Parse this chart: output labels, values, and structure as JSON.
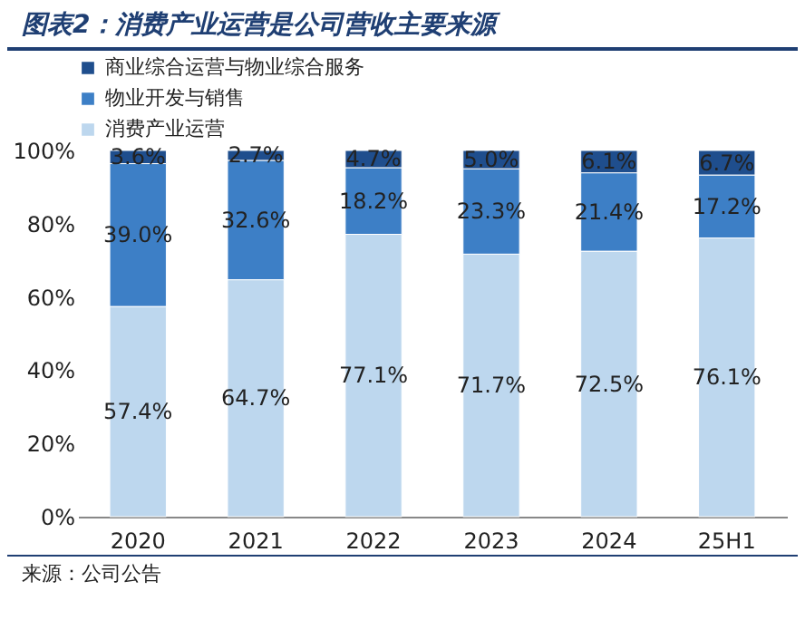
{
  "chart_data": {
    "type": "bar",
    "stacked": true,
    "title": "图表2：消费产业运营是公司营收主要来源",
    "categories": [
      "2020",
      "2021",
      "2022",
      "2023",
      "2024",
      "25H1"
    ],
    "series": [
      {
        "name": "消费产业运营",
        "color": "#bdd7ee",
        "values": [
          57.4,
          64.7,
          77.1,
          71.7,
          72.5,
          76.1
        ],
        "value_labels": [
          "57.4%",
          "64.7%",
          "77.1%",
          "71.7%",
          "72.5%",
          "76.1%"
        ]
      },
      {
        "name": "物业开发与销售",
        "color": "#3d7fc6",
        "values": [
          39.0,
          32.6,
          18.2,
          23.3,
          21.4,
          17.2
        ],
        "value_labels": [
          "39.0%",
          "32.6%",
          "18.2%",
          "23.3%",
          "21.4%",
          "17.2%"
        ]
      },
      {
        "name": "商业综合运营与物业综合服务",
        "color": "#1f4e8d",
        "values": [
          3.6,
          2.7,
          4.7,
          5.0,
          6.1,
          6.7
        ],
        "value_labels": [
          "3.6%",
          "2.7%",
          "4.7%",
          "5.0%",
          "6.1%",
          "6.7%"
        ]
      }
    ],
    "ylim": [
      0,
      100
    ],
    "yticks": [
      {
        "value": 0,
        "label": "0%"
      },
      {
        "value": 20,
        "label": "20%"
      },
      {
        "value": 40,
        "label": "40%"
      },
      {
        "value": 60,
        "label": "60%"
      },
      {
        "value": 80,
        "label": "80%"
      },
      {
        "value": 100,
        "label": "100%"
      }
    ],
    "grid": false,
    "legend": "top",
    "annotations": [
      "来源：公司公告"
    ]
  }
}
